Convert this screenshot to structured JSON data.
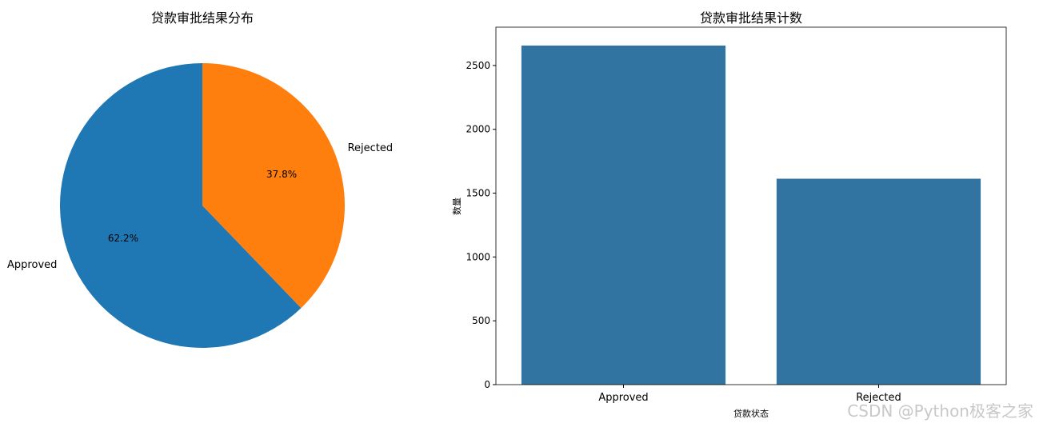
{
  "chart_data": [
    {
      "type": "pie",
      "title": "贷款审批结果分布",
      "labels": [
        "Approved",
        "Rejected"
      ],
      "values": [
        62.2,
        37.8
      ],
      "value_labels": [
        "62.2%",
        "37.8%"
      ],
      "colors": [
        "#1f77b4",
        "#ff7f0e"
      ]
    },
    {
      "type": "bar",
      "title": "贷款审批结果计数",
      "categories": [
        "Approved",
        "Rejected"
      ],
      "values": [
        2656,
        1613
      ],
      "xlabel": "贷款状态",
      "ylabel": "数量",
      "ylim": [
        0,
        2800
      ],
      "yticks": [
        0,
        500,
        1000,
        1500,
        2000,
        2500
      ],
      "color": "#3274a1",
      "grid": false
    }
  ],
  "watermark": "CSDN @Python极客之家"
}
